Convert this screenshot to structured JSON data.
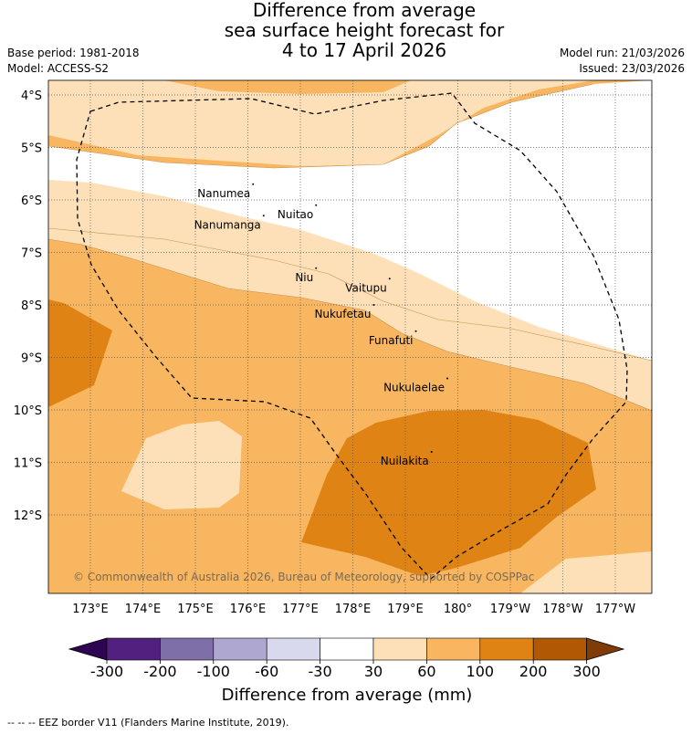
{
  "title_lines": [
    "Difference from average",
    "sea surface height forecast for",
    "4 to 17 April 2026"
  ],
  "meta_left": [
    "Base period: 1981-2018",
    "Model: ACCESS-S2"
  ],
  "meta_right": [
    "Model run: 21/03/2026",
    "Issued: 23/03/2026"
  ],
  "lat_labels": [
    "4°S",
    "5°S",
    "6°S",
    "7°S",
    "8°S",
    "9°S",
    "10°S",
    "11°S",
    "12°S"
  ],
  "lon_labels": [
    "173°E",
    "174°E",
    "175°E",
    "176°E",
    "177°E",
    "178°E",
    "179°E",
    "180°",
    "179°W",
    "178°W",
    "177°W"
  ],
  "islands": [
    {
      "name": "Nanumea",
      "lon": 176.1,
      "lat": -5.7
    },
    {
      "name": "Nuitao",
      "lon": 177.3,
      "lat": -6.1
    },
    {
      "name": "Nanumanga",
      "lon": 176.3,
      "lat": -6.3
    },
    {
      "name": "Niu",
      "lon": 177.3,
      "lat": -7.3
    },
    {
      "name": "Vaitupu",
      "lon": 178.7,
      "lat": -7.5
    },
    {
      "name": "Nukufetau",
      "lon": 178.4,
      "lat": -8.0
    },
    {
      "name": "Funafuti",
      "lon": 179.2,
      "lat": -8.5
    },
    {
      "name": "Nukulaelae",
      "lon": 179.8,
      "lat": -9.4
    },
    {
      "name": "Nuilakita",
      "lon": 179.5,
      "lat": -10.8
    }
  ],
  "copyright": "© Commonwealth of Australia 2026, Bureau of Meteorology, supported by COSPPac",
  "colorbar": {
    "ticks": [
      "-300",
      "-200",
      "-100",
      "-60",
      "-30",
      "30",
      "60",
      "100",
      "200",
      "300"
    ],
    "colors": [
      "#52217f",
      "#7e6fa8",
      "#aea8d0",
      "#d9d9ee",
      "#ffffff",
      "#fde0b7",
      "#f9b660",
      "#e08315",
      "#b15804"
    ],
    "under_color": "#2d0553",
    "over_color": "#7f3b08",
    "label": "Difference from average (mm)"
  },
  "footer": "--  --  -- EEZ border V11 (Flanders Marine Institute, 2019)."
}
